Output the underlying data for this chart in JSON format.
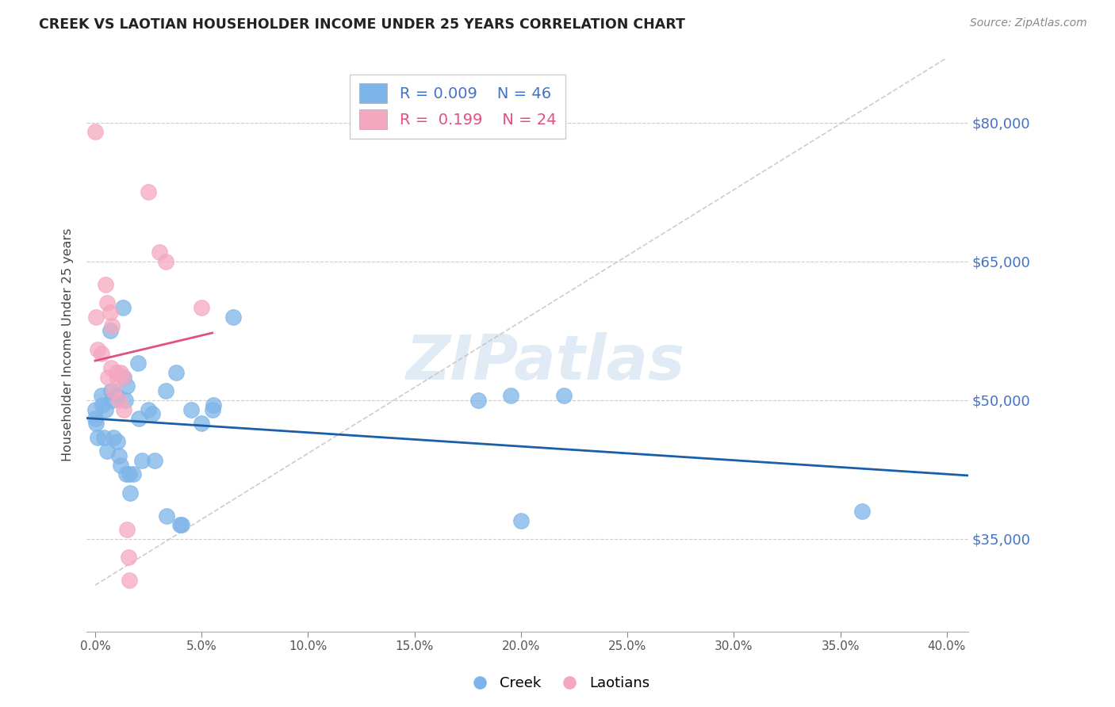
{
  "title": "CREEK VS LAOTIAN HOUSEHOLDER INCOME UNDER 25 YEARS CORRELATION CHART",
  "source": "Source: ZipAtlas.com",
  "ylabel": "Householder Income Under 25 years",
  "ytick_vals": [
    35000,
    50000,
    65000,
    80000
  ],
  "ytick_labels": [
    "$35,000",
    "$50,000",
    "$65,000",
    "$80,000"
  ],
  "ylim": [
    25000,
    87000
  ],
  "xlim": [
    -0.4,
    41.0
  ],
  "xlim_ticks": [
    0,
    5,
    10,
    15,
    20,
    25,
    30,
    35,
    40
  ],
  "xtick_labels": [
    "0.0%",
    "5.0%",
    "10.0%",
    "15.0%",
    "20.0%",
    "25.0%",
    "30.0%",
    "35.0%",
    "40.0%"
  ],
  "creek_color": "#7EB5E8",
  "laotian_color": "#F4A8C0",
  "creek_R": 0.009,
  "creek_N": 46,
  "laotian_R": 0.199,
  "laotian_N": 24,
  "creek_line_color": "#1A5FA8",
  "laotian_line_color": "#E05080",
  "dashed_line_color": "#CCBBBB",
  "watermark_color": "#C8DCEF",
  "creek_x": [
    0.0,
    0.0,
    0.05,
    0.1,
    0.3,
    0.35,
    0.4,
    0.5,
    0.55,
    0.7,
    0.75,
    0.8,
    0.85,
    1.0,
    1.05,
    1.1,
    1.2,
    1.3,
    1.35,
    1.4,
    1.45,
    1.5,
    1.6,
    1.65,
    1.8,
    2.0,
    2.05,
    2.2,
    2.5,
    2.7,
    2.8,
    3.3,
    3.35,
    3.8,
    4.0,
    4.05,
    4.5,
    5.0,
    5.5,
    5.55,
    6.5,
    18.0,
    19.5,
    20.0,
    22.0,
    36.0
  ],
  "creek_y": [
    49000,
    48000,
    47500,
    46000,
    50500,
    49500,
    46000,
    49000,
    44500,
    57500,
    51000,
    50000,
    46000,
    50500,
    45500,
    44000,
    43000,
    60000,
    52500,
    50000,
    42000,
    51500,
    42000,
    40000,
    42000,
    54000,
    48000,
    43500,
    49000,
    48500,
    43500,
    51000,
    37500,
    53000,
    36500,
    36500,
    49000,
    47500,
    49000,
    49500,
    59000,
    50000,
    50500,
    37000,
    50500,
    38000
  ],
  "laotian_x": [
    0.0,
    0.05,
    0.1,
    0.3,
    0.5,
    0.55,
    0.6,
    0.7,
    0.75,
    0.8,
    0.85,
    1.0,
    1.05,
    1.1,
    1.2,
    1.3,
    1.35,
    1.5,
    1.55,
    1.6,
    2.5,
    3.0,
    3.3,
    5.0
  ],
  "laotian_y": [
    79000,
    59000,
    55500,
    55000,
    62500,
    60500,
    52500,
    59500,
    53500,
    58000,
    51000,
    53000,
    52500,
    50000,
    53000,
    52500,
    49000,
    36000,
    33000,
    30500,
    72500,
    66000,
    65000,
    60000
  ]
}
